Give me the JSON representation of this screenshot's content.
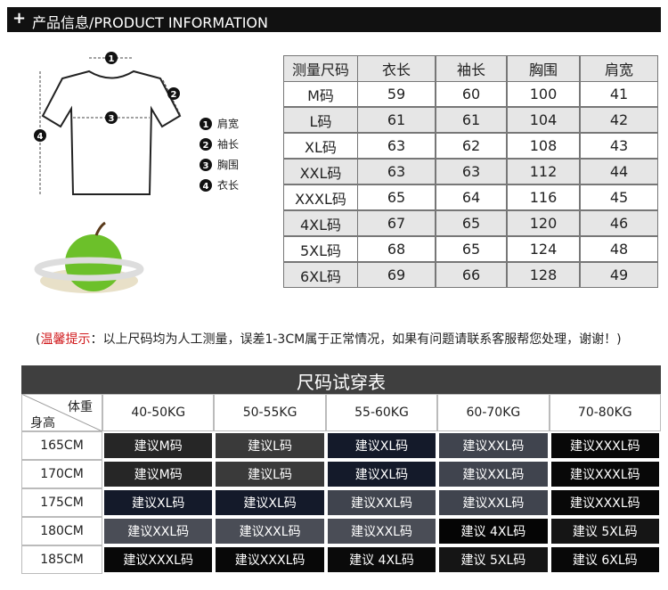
{
  "header": {
    "plus": "+",
    "title": "产品信息/PRODUCT INFORMATION"
  },
  "diagram": {
    "markers": [
      "1",
      "2",
      "3",
      "4"
    ],
    "legend": [
      {
        "number": "1",
        "label": "肩宽"
      },
      {
        "number": "2",
        "label": "袖长"
      },
      {
        "number": "3",
        "label": "胸围"
      },
      {
        "number": "4",
        "label": "衣长"
      }
    ]
  },
  "size_table": {
    "columns": [
      "测量尺码",
      "衣长",
      "袖长",
      "胸围",
      "肩宽"
    ],
    "rows": [
      [
        "M码",
        59,
        60,
        100,
        41
      ],
      [
        "L码",
        61,
        61,
        104,
        42
      ],
      [
        "XL码",
        63,
        62,
        108,
        43
      ],
      [
        "XXL码",
        63,
        63,
        112,
        44
      ],
      [
        "XXXL码",
        65,
        64,
        116,
        45
      ],
      [
        "4XL码",
        67,
        65,
        120,
        46
      ],
      [
        "5XL码",
        68,
        65,
        124,
        48
      ],
      [
        "6XL码",
        69,
        66,
        128,
        49
      ]
    ]
  },
  "note": {
    "prefix": "(",
    "highlight": "温馨提示",
    "text": "：以上尺码均为人工测量，误差1-3CM属于正常情况，如果有问题请联系客服帮您处理，谢谢！)"
  },
  "fit_table": {
    "title": "尺码试穿表",
    "corner": {
      "top": "体重",
      "bottom": "身高"
    },
    "weights": [
      "40-50KG",
      "50-55KG",
      "55-60KG",
      "60-70KG",
      "70-80KG"
    ],
    "rows": [
      {
        "height": "165CM",
        "cells": [
          "建议M码",
          "建议L码",
          "建议XL码",
          "建议XXL码",
          "建议XXXL码"
        ],
        "colors": [
          "#262626",
          "#3a3a3a",
          "#141a2a",
          "#40444e",
          "#080808"
        ]
      },
      {
        "height": "170CM",
        "cells": [
          "建议M码",
          "建议L码",
          "建议XL码",
          "建议XXL码",
          "建议XXXL码"
        ],
        "colors": [
          "#262626",
          "#3a3a3a",
          "#141a2a",
          "#40444e",
          "#080808"
        ]
      },
      {
        "height": "175CM",
        "cells": [
          "建议XL码",
          "建议XL码",
          "建议XXL码",
          "建议XXL码",
          "建议XXXL码"
        ],
        "colors": [
          "#141a2a",
          "#141a2a",
          "#40444e",
          "#40444e",
          "#080808"
        ]
      },
      {
        "height": "180CM",
        "cells": [
          "建议XXL码",
          "建议XXL码",
          "建议XXL码",
          "建议 4XL码",
          "建议 5XL码"
        ],
        "colors": [
          "#4a4d56",
          "#4a4d56",
          "#4a4d56",
          "#050505",
          "#151515"
        ]
      },
      {
        "height": "185CM",
        "cells": [
          "建议XXXL码",
          "建议XXXL码",
          "建议 4XL码",
          "建议 5XL码",
          "建议 6XL码"
        ],
        "colors": [
          "#080808",
          "#080808",
          "#0a0a0a",
          "#151515",
          "#080808"
        ]
      }
    ]
  }
}
